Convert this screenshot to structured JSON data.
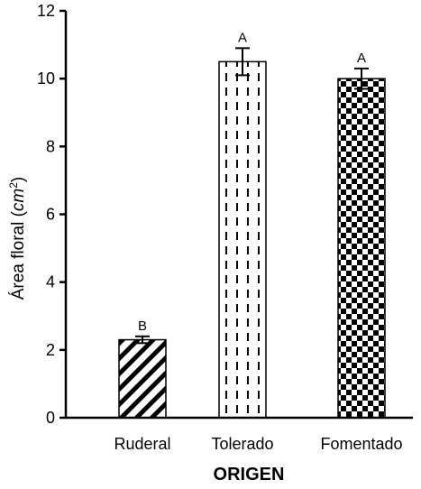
{
  "chart_data": {
    "type": "bar",
    "categories": [
      "Ruderal",
      "Tolerado",
      "Fomentado"
    ],
    "values": [
      2.3,
      10.5,
      10.0
    ],
    "errors": [
      0.1,
      0.4,
      0.3
    ],
    "significance_letters": [
      "B",
      "A",
      "A"
    ],
    "patterns": [
      "diagonal-stripes",
      "dashed-vertical",
      "checkerboard"
    ],
    "title": "",
    "xlabel": "ORIGEN",
    "ylabel": {
      "prefix": "Área floral (",
      "unit": "cm",
      "unit_exponent": "2",
      "suffix": ")"
    },
    "ylim": [
      0,
      12
    ],
    "yticks": [
      0,
      2,
      4,
      6,
      8,
      10,
      12
    ],
    "grid": false,
    "legend": "none"
  },
  "colors": {
    "ink": "#000000",
    "background": "#ffffff"
  }
}
